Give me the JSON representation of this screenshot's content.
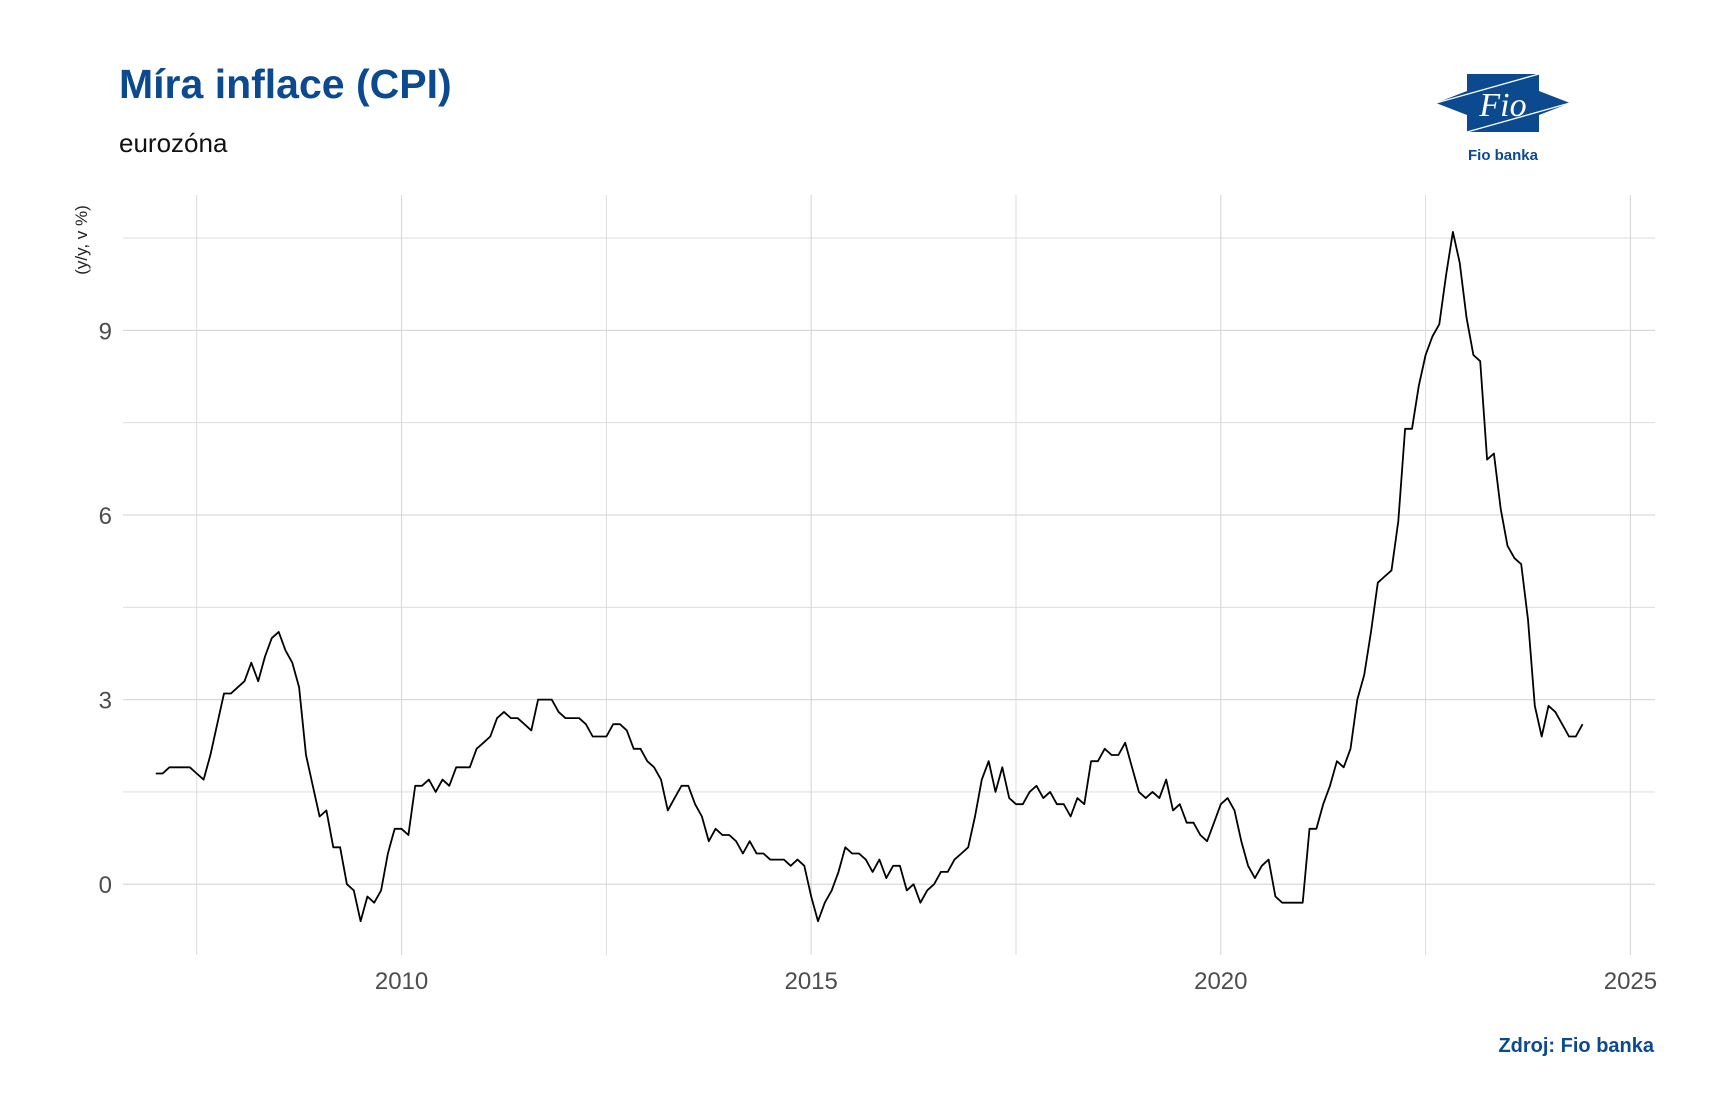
{
  "header": {
    "title": "Míra inflace (CPI)",
    "subtitle": "eurozóna"
  },
  "logo": {
    "mark_text": "Fio",
    "caption": "Fio banka",
    "color": "#0b4a8f"
  },
  "footer": {
    "source": "Zdroj: Fio banka"
  },
  "colors": {
    "accent": "#0b4a8f",
    "line": "#000000",
    "grid": "#d9d9d9"
  },
  "chart_data": {
    "type": "line",
    "title": "Míra inflace (CPI)",
    "subtitle": "eurozóna",
    "xlabel": "",
    "ylabel": "(y/y, v %)",
    "grid": true,
    "legend": "none",
    "x_ticks": [
      2010,
      2015,
      2020,
      2025
    ],
    "y_ticks": [
      0,
      3,
      6,
      9
    ],
    "xlim": [
      2006.6,
      2025.3
    ],
    "ylim": [
      -1.15,
      11.2
    ],
    "series": [
      {
        "name": "",
        "start": "2007-01",
        "frequency": "monthly",
        "values": [
          1.8,
          1.8,
          1.9,
          1.9,
          1.9,
          1.9,
          1.8,
          1.7,
          2.1,
          2.6,
          3.1,
          3.1,
          3.2,
          3.3,
          3.6,
          3.3,
          3.7,
          4.0,
          4.1,
          3.8,
          3.6,
          3.2,
          2.1,
          1.6,
          1.1,
          1.2,
          0.6,
          0.6,
          0.0,
          -0.1,
          -0.6,
          -0.2,
          -0.3,
          -0.1,
          0.5,
          0.9,
          0.9,
          0.8,
          1.6,
          1.6,
          1.7,
          1.5,
          1.7,
          1.6,
          1.9,
          1.9,
          1.9,
          2.2,
          2.3,
          2.4,
          2.7,
          2.8,
          2.7,
          2.7,
          2.6,
          2.5,
          3.0,
          3.0,
          3.0,
          2.8,
          2.7,
          2.7,
          2.7,
          2.6,
          2.4,
          2.4,
          2.4,
          2.6,
          2.6,
          2.5,
          2.2,
          2.2,
          2.0,
          1.9,
          1.7,
          1.2,
          1.4,
          1.6,
          1.6,
          1.3,
          1.1,
          0.7,
          0.9,
          0.8,
          0.8,
          0.7,
          0.5,
          0.7,
          0.5,
          0.5,
          0.4,
          0.4,
          0.4,
          0.3,
          0.4,
          0.3,
          -0.2,
          -0.6,
          -0.3,
          -0.1,
          0.2,
          0.6,
          0.5,
          0.5,
          0.4,
          0.2,
          0.4,
          0.1,
          0.3,
          0.3,
          -0.1,
          0.0,
          -0.3,
          -0.1,
          0.0,
          0.2,
          0.2,
          0.4,
          0.5,
          0.6,
          1.1,
          1.7,
          2.0,
          1.5,
          1.9,
          1.4,
          1.3,
          1.3,
          1.5,
          1.6,
          1.4,
          1.5,
          1.3,
          1.3,
          1.1,
          1.4,
          1.3,
          2.0,
          2.0,
          2.2,
          2.1,
          2.1,
          2.3,
          1.9,
          1.5,
          1.4,
          1.5,
          1.4,
          1.7,
          1.2,
          1.3,
          1.0,
          1.0,
          0.8,
          0.7,
          1.0,
          1.3,
          1.4,
          1.2,
          0.7,
          0.3,
          0.1,
          0.3,
          0.4,
          -0.2,
          -0.3,
          -0.3,
          -0.3,
          -0.3,
          0.9,
          0.9,
          1.3,
          1.6,
          2.0,
          1.9,
          2.2,
          3.0,
          3.4,
          4.1,
          4.9,
          5.0,
          5.1,
          5.9,
          7.4,
          7.4,
          8.1,
          8.6,
          8.9,
          9.1,
          9.9,
          10.6,
          10.1,
          9.2,
          8.6,
          8.5,
          6.9,
          7.0,
          6.1,
          5.5,
          5.3,
          5.2,
          4.3,
          2.9,
          2.4,
          2.9,
          2.8,
          2.6,
          2.4,
          2.4,
          2.6
        ]
      }
    ]
  }
}
